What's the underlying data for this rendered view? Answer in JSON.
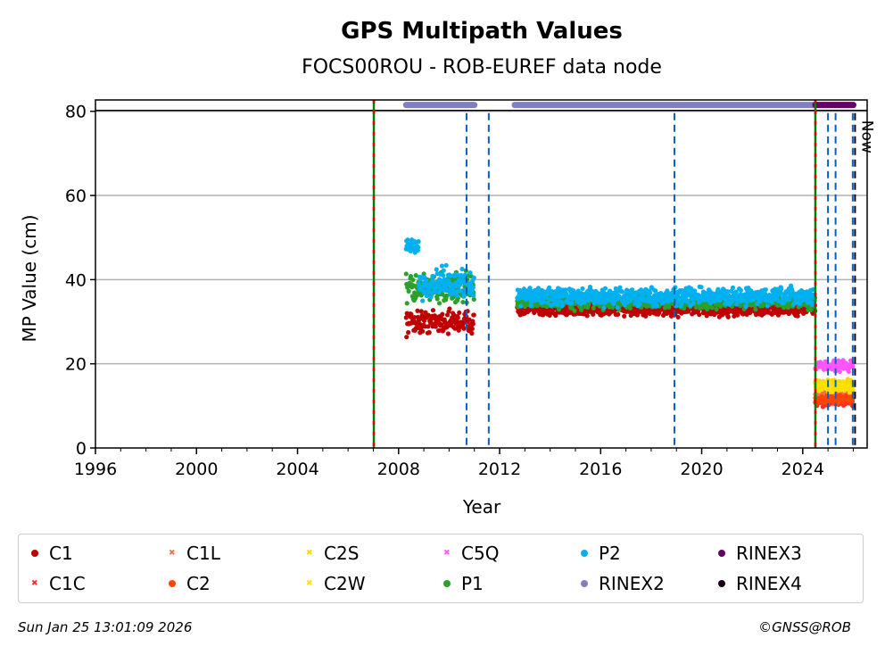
{
  "chart_data": {
    "type": "scatter",
    "title": "GPS Multipath Values",
    "subtitle": "FOCS00ROU - ROB-EUREF data node",
    "xlabel": "Year",
    "ylabel": "MP Value (cm)",
    "xlim": [
      1996,
      2026.55
    ],
    "ylim": [
      0,
      82.7
    ],
    "xticks": [
      1996,
      2000,
      2004,
      2008,
      2012,
      2016,
      2020,
      2024
    ],
    "yticks": [
      0,
      20,
      40,
      60,
      80
    ],
    "grid": "horizontal",
    "now_label": "Now",
    "now_year": 2026.07,
    "event_lines": [
      {
        "x": 2007.02,
        "type": "receiver-antenna"
      },
      {
        "x": 2024.5,
        "type": "receiver-antenna"
      },
      {
        "x": 2010.69,
        "type": "other"
      },
      {
        "x": 2011.57,
        "type": "other"
      },
      {
        "x": 2018.92,
        "type": "other"
      },
      {
        "x": 2025.0,
        "type": "other"
      },
      {
        "x": 2025.3,
        "type": "other"
      },
      {
        "x": 2025.98,
        "type": "other"
      }
    ],
    "series": [
      {
        "name": "C1",
        "color": "#c00000",
        "segments": [
          {
            "from": 2008.3,
            "to": 2011.0,
            "mean": 30,
            "spread": 2
          },
          {
            "from": 2012.7,
            "to": 2024.5,
            "mean": 33,
            "spread": 1.2
          }
        ]
      },
      {
        "name": "C1C",
        "color": "#ff2a2a",
        "segments": [
          {
            "from": 2024.5,
            "to": 2026.0,
            "mean": 11,
            "spread": 0.8
          }
        ]
      },
      {
        "name": "C1L",
        "color": "#ff6a50",
        "segments": [
          {
            "from": 2024.5,
            "to": 2026.0,
            "mean": 12.8,
            "spread": 0.8
          }
        ]
      },
      {
        "name": "C2",
        "color": "#ff4500",
        "segments": [
          {
            "from": 2024.5,
            "to": 2026.0,
            "mean": 11.5,
            "spread": 0.7
          }
        ]
      },
      {
        "name": "C2S",
        "color": "#ffd700",
        "segments": [
          {
            "from": 2024.5,
            "to": 2026.0,
            "mean": 15,
            "spread": 0.9
          }
        ]
      },
      {
        "name": "C2W",
        "color": "#ffe000",
        "segments": [
          {
            "from": 2024.5,
            "to": 2026.0,
            "mean": 14.5,
            "spread": 0.9
          }
        ]
      },
      {
        "name": "C5Q",
        "color": "#ff55ff",
        "segments": [
          {
            "from": 2024.5,
            "to": 2026.0,
            "mean": 19.5,
            "spread": 0.9
          }
        ]
      },
      {
        "name": "P1",
        "color": "#2ca02c",
        "segments": [
          {
            "from": 2008.3,
            "to": 2011.0,
            "mean": 38,
            "spread": 2.5
          },
          {
            "from": 2012.7,
            "to": 2024.5,
            "mean": 34.8,
            "spread": 1.2
          }
        ]
      },
      {
        "name": "P2",
        "color": "#00b0f0",
        "segments": [
          {
            "from": 2008.3,
            "to": 2008.8,
            "mean": 48,
            "spread": 1
          },
          {
            "from": 2008.8,
            "to": 2011.0,
            "mean": 39,
            "spread": 2.5
          },
          {
            "from": 2012.7,
            "to": 2024.5,
            "mean": 36,
            "spread": 1.5
          }
        ]
      },
      {
        "name": "RINEX2",
        "color": "#8080c0",
        "segments": [
          {
            "from": 2008.3,
            "to": 2011.0,
            "mean": 81.5,
            "spread": 0
          },
          {
            "from": 2012.6,
            "to": 2024.5,
            "mean": 81.5,
            "spread": 0
          }
        ]
      },
      {
        "name": "RINEX3",
        "color": "#660066",
        "segments": [
          {
            "from": 2024.5,
            "to": 2026.0,
            "mean": 81.5,
            "spread": 0
          }
        ]
      },
      {
        "name": "RINEX4",
        "color": "#1a001a",
        "segments": []
      }
    ]
  },
  "legend": [
    {
      "label": "C1",
      "color": "#c00000",
      "marker": "dot"
    },
    {
      "label": "C1L",
      "color": "#ff6a50",
      "marker": "x"
    },
    {
      "label": "C2S",
      "color": "#ffd700",
      "marker": "x"
    },
    {
      "label": "C5Q",
      "color": "#ff55ff",
      "marker": "x"
    },
    {
      "label": "P2",
      "color": "#00b0f0",
      "marker": "dot"
    },
    {
      "label": "RINEX3",
      "color": "#660066",
      "marker": "dot"
    },
    {
      "label": "C1C",
      "color": "#ff2a2a",
      "marker": "x"
    },
    {
      "label": "C2",
      "color": "#ff4500",
      "marker": "dot"
    },
    {
      "label": "C2W",
      "color": "#ffe000",
      "marker": "x"
    },
    {
      "label": "P1",
      "color": "#2ca02c",
      "marker": "dot"
    },
    {
      "label": "RINEX2",
      "color": "#8080c0",
      "marker": "dot"
    },
    {
      "label": "RINEX4",
      "color": "#1a001a",
      "marker": "dot"
    }
  ],
  "footer": {
    "timestamp": "Sun Jan 25 13:01:09 2026",
    "copyright": "©GNSS@ROB"
  }
}
